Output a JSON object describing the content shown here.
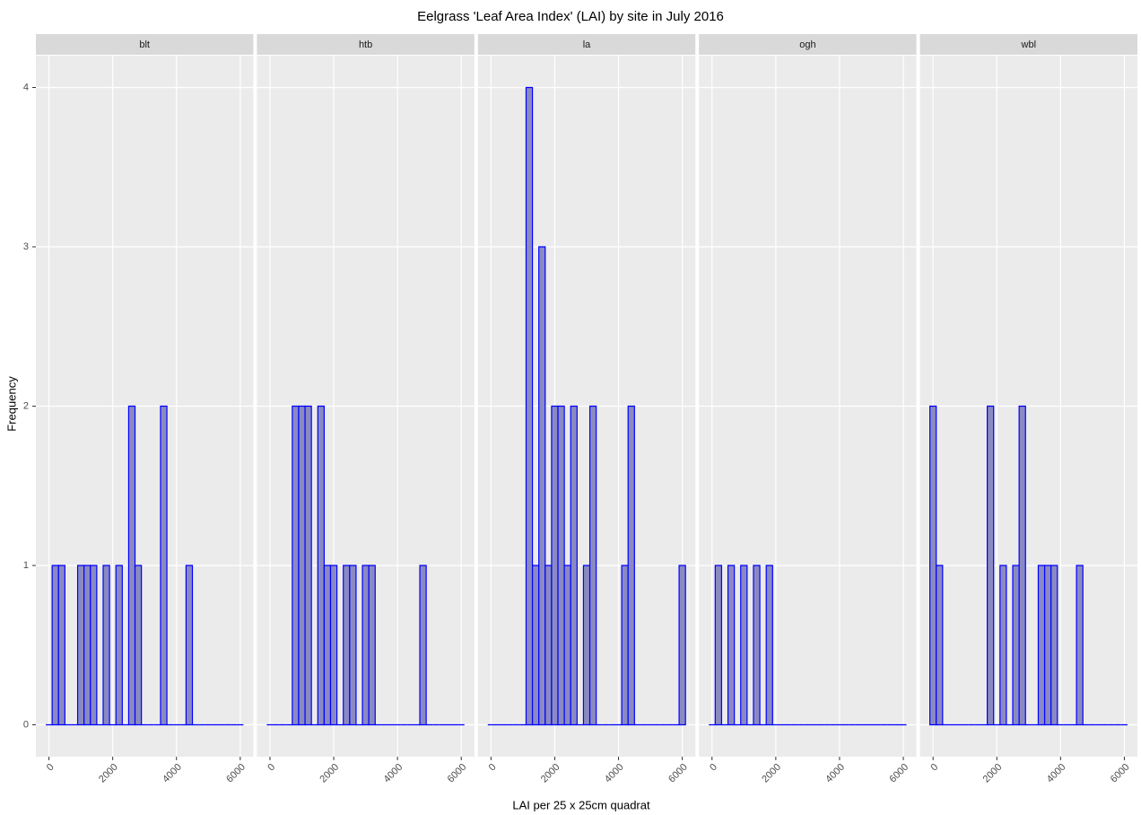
{
  "chart_data": {
    "type": "histogram",
    "title": "Eelgrass 'Leaf Area Index' (LAI) by site in July 2016",
    "x_label": "LAI per 25 x 25cm quadrat",
    "y_label": "Frequency",
    "bins": [
      -100,
      100,
      300,
      500,
      700,
      900,
      1100,
      1300,
      1500,
      1700,
      1900,
      2100,
      2300,
      2500,
      2700,
      2900,
      3100,
      3300,
      3500,
      3700,
      3900,
      4100,
      4300,
      4500,
      4700,
      4900,
      5100,
      5300,
      5500,
      5700,
      5900,
      6100
    ],
    "xlim": [
      -410,
      6410
    ],
    "xticks": [
      0,
      2000,
      4000,
      6000
    ],
    "ylim": [
      -0.2,
      4.2
    ],
    "yticks": [
      0,
      1,
      2,
      3,
      4
    ],
    "grid": true,
    "color": "#0000ff",
    "fill": "#8a8ac2",
    "facets": [
      {
        "name": "blt",
        "values": [
          0,
          1,
          1,
          0,
          0,
          1,
          1,
          1,
          0,
          1,
          0,
          1,
          0,
          2,
          1,
          0,
          0,
          0,
          2,
          0,
          0,
          0,
          1,
          0,
          0,
          0,
          0,
          0,
          0,
          0,
          0
        ]
      },
      {
        "name": "htb",
        "values": [
          0,
          0,
          0,
          0,
          2,
          2,
          2,
          0,
          2,
          1,
          1,
          0,
          1,
          1,
          0,
          1,
          1,
          0,
          0,
          0,
          0,
          0,
          0,
          0,
          1,
          0,
          0,
          0,
          0,
          0,
          0
        ]
      },
      {
        "name": "la",
        "values": [
          0,
          0,
          0,
          0,
          0,
          0,
          4,
          1,
          3,
          1,
          2,
          2,
          1,
          2,
          0,
          1,
          2,
          0,
          0,
          0,
          0,
          1,
          2,
          0,
          0,
          0,
          0,
          0,
          0,
          0,
          1
        ]
      },
      {
        "name": "ogh",
        "values": [
          0,
          1,
          0,
          1,
          0,
          1,
          0,
          1,
          0,
          1,
          0,
          0,
          0,
          0,
          0,
          0,
          0,
          0,
          0,
          0,
          0,
          0,
          0,
          0,
          0,
          0,
          0,
          0,
          0,
          0,
          0
        ]
      },
      {
        "name": "wbl",
        "values": [
          2,
          1,
          0,
          0,
          0,
          0,
          0,
          0,
          0,
          2,
          0,
          1,
          0,
          1,
          2,
          0,
          0,
          1,
          1,
          1,
          0,
          0,
          0,
          1,
          0,
          0,
          0,
          0,
          0,
          0,
          0
        ]
      }
    ]
  }
}
